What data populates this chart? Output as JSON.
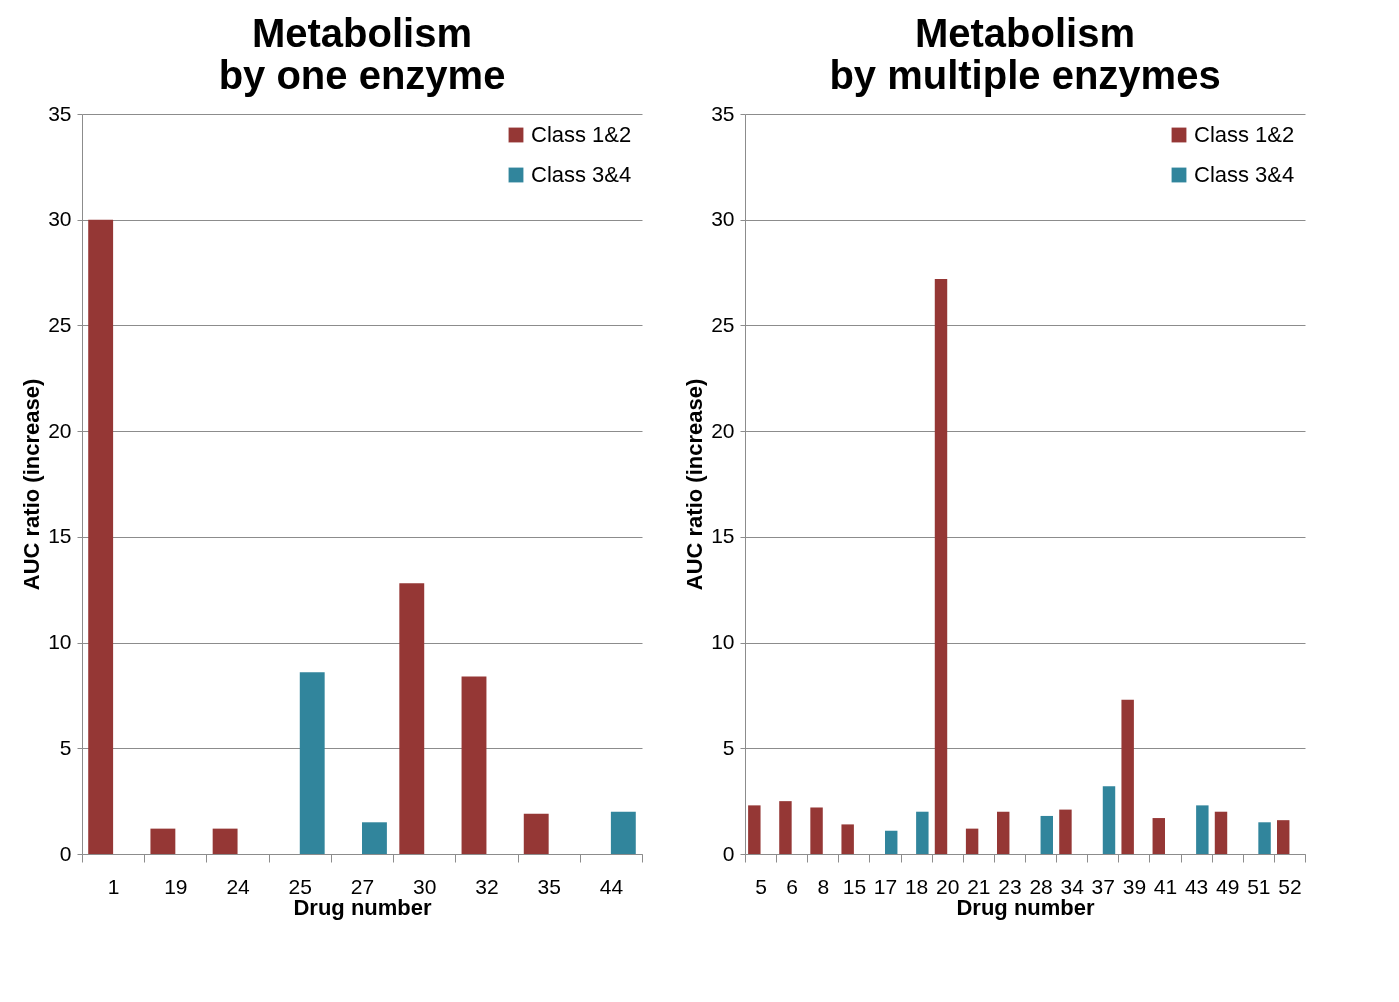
{
  "chart_data": [
    {
      "type": "bar",
      "title": "Metabolism\nby one enzyme",
      "xlabel": "Drug number",
      "ylabel": "AUC ratio (increase)",
      "categories": [
        "1",
        "19",
        "24",
        "25",
        "27",
        "30",
        "32",
        "35",
        "44"
      ],
      "series": [
        {
          "name": "Class 1&2",
          "color": "#953735",
          "values": [
            30,
            1.2,
            1.2,
            null,
            null,
            12.8,
            8.4,
            1.9,
            null
          ]
        },
        {
          "name": "Class 3&4",
          "color": "#31859c",
          "values": [
            null,
            null,
            null,
            8.6,
            1.5,
            null,
            null,
            null,
            2.0
          ]
        }
      ],
      "ylim": [
        0,
        35
      ],
      "yticks": [
        0,
        5,
        10,
        15,
        20,
        25,
        30,
        35
      ],
      "grid": "y",
      "legend": "top right"
    },
    {
      "type": "bar",
      "title": "Metabolism\nby multiple enzymes",
      "xlabel": "Drug number",
      "ylabel": "AUC ratio (increase)",
      "categories": [
        "5",
        "6",
        "8",
        "15",
        "17",
        "18",
        "20",
        "21",
        "23",
        "28",
        "34",
        "37",
        "39",
        "41",
        "43",
        "49",
        "51",
        "52"
      ],
      "series": [
        {
          "name": "Class 1&2",
          "color": "#953735",
          "values": [
            2.3,
            2.5,
            2.2,
            1.4,
            null,
            null,
            27.2,
            1.2,
            2.0,
            null,
            2.1,
            null,
            7.3,
            1.7,
            null,
            2.0,
            null,
            1.6
          ]
        },
        {
          "name": "Class 3&4",
          "color": "#31859c",
          "values": [
            null,
            null,
            null,
            null,
            1.1,
            2.0,
            null,
            null,
            null,
            1.8,
            null,
            3.2,
            null,
            null,
            2.3,
            null,
            1.5,
            null
          ]
        }
      ],
      "ylim": [
        0,
        35
      ],
      "yticks": [
        0,
        5,
        10,
        15,
        20,
        25,
        30,
        35
      ],
      "grid": "y",
      "legend": "top right"
    }
  ]
}
